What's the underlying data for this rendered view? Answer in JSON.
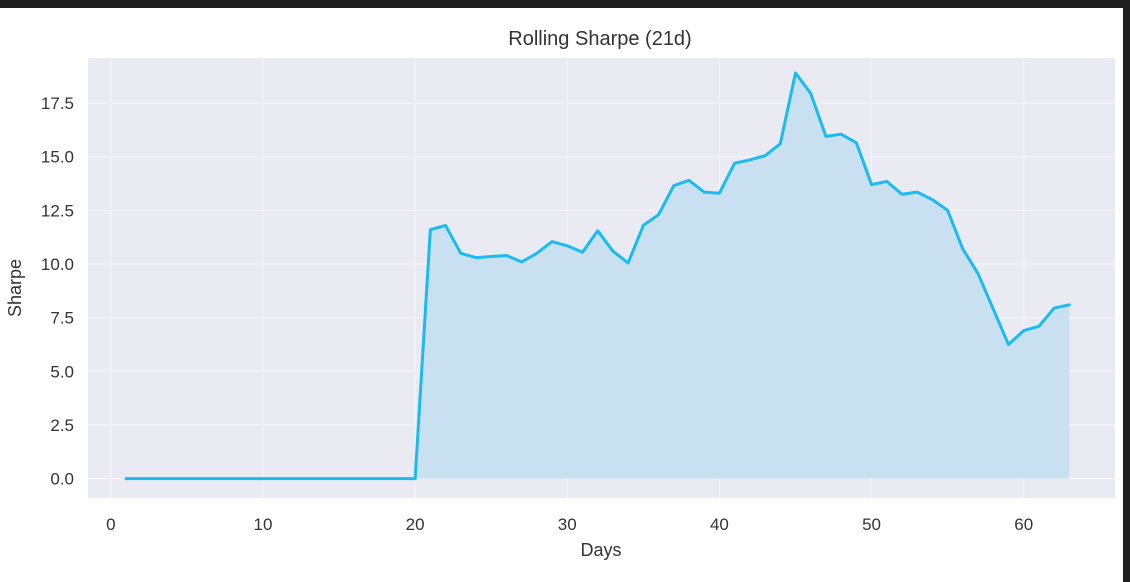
{
  "chart_data": {
    "type": "area",
    "title": "Rolling Sharpe (21d)",
    "xlabel": "Days",
    "ylabel": "Sharpe",
    "xlim": [
      -1.5,
      66
    ],
    "ylim": [
      -0.9,
      19.6
    ],
    "xticks": [
      0,
      10,
      20,
      30,
      40,
      50,
      60
    ],
    "xtick_labels": [
      "0",
      "10",
      "20",
      "30",
      "40",
      "50",
      "60"
    ],
    "yticks": [
      0,
      2.5,
      5,
      7.5,
      10,
      12.5,
      15,
      17.5
    ],
    "ytick_labels": [
      "0.0",
      "2.5",
      "5.0",
      "7.5",
      "10.0",
      "12.5",
      "15.0",
      "17.5"
    ],
    "grid": true,
    "series": [
      {
        "line_color": "#1ABBEF",
        "fill_color": "#C8E0F0",
        "x": [
          1,
          2,
          3,
          4,
          5,
          6,
          7,
          8,
          9,
          10,
          11,
          12,
          13,
          14,
          15,
          16,
          17,
          18,
          19,
          20,
          21,
          22,
          23,
          24,
          25,
          26,
          27,
          28,
          29,
          30,
          31,
          32,
          33,
          34,
          35,
          36,
          37,
          38,
          39,
          40,
          41,
          42,
          43,
          44,
          45,
          46,
          47,
          48,
          49,
          50,
          51,
          52,
          53,
          54,
          55,
          56,
          57,
          58,
          59,
          60,
          61,
          62,
          63
        ],
        "y": [
          0,
          0,
          0,
          0,
          0,
          0,
          0,
          0,
          0,
          0,
          0,
          0,
          0,
          0,
          0,
          0,
          0,
          0,
          0,
          0,
          11.6,
          11.8,
          10.5,
          10.3,
          10.35,
          10.4,
          10.1,
          10.5,
          11.05,
          10.85,
          10.55,
          11.55,
          10.6,
          10.05,
          11.8,
          12.3,
          13.65,
          13.9,
          13.35,
          13.3,
          14.7,
          14.85,
          15.05,
          15.6,
          18.9,
          17.95,
          15.95,
          16.05,
          15.65,
          13.7,
          13.85,
          13.25,
          13.35,
          13.0,
          12.5,
          10.7,
          9.55,
          7.9,
          6.25,
          6.9,
          7.1,
          7.95,
          8.1
        ]
      }
    ]
  },
  "colors": {
    "plot_background": "#EAEAF2",
    "grid": "#F5F5FA",
    "text": "#333333"
  }
}
